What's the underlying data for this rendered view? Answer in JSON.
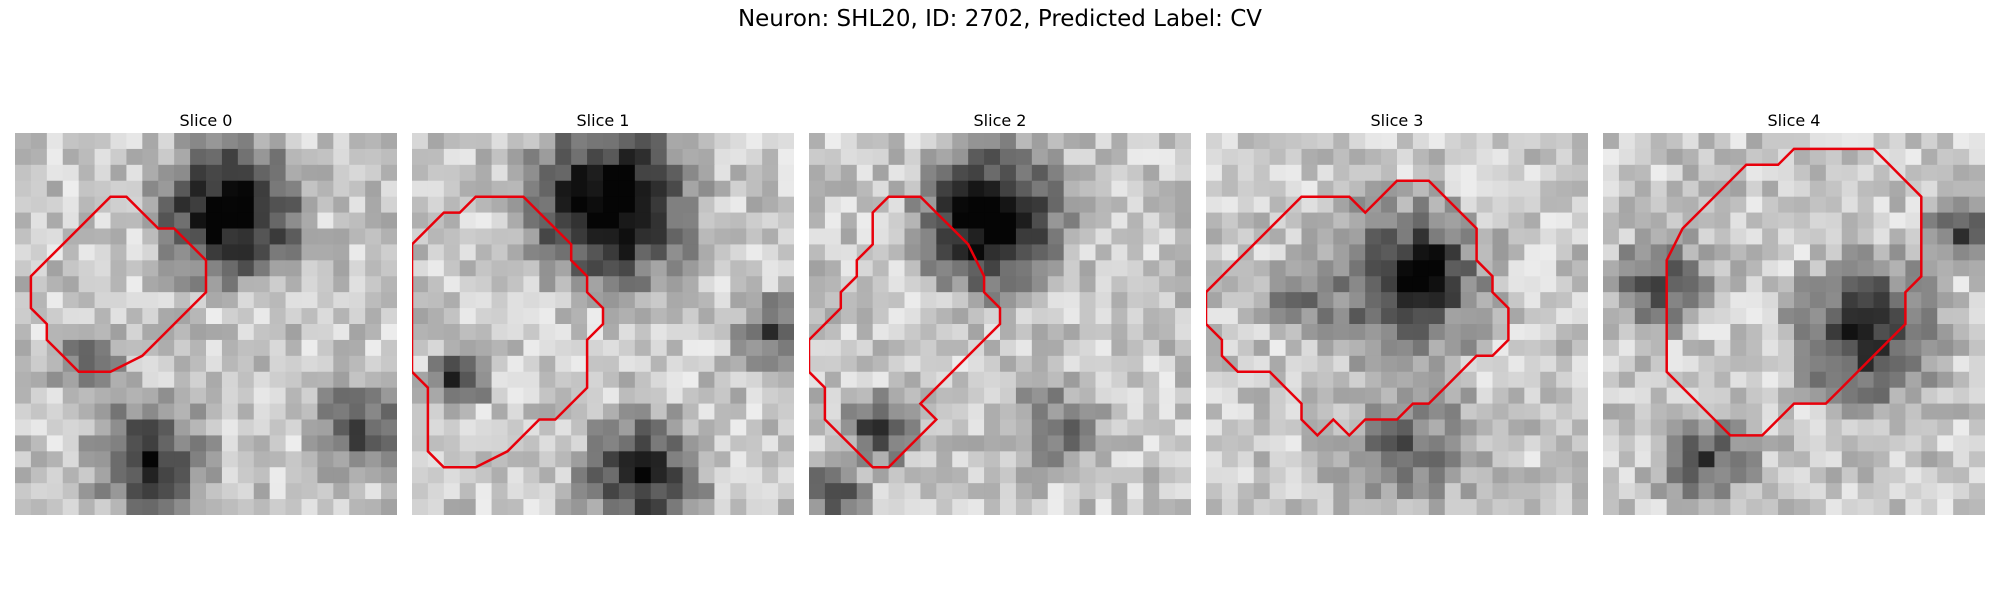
{
  "suptitle": "Neuron: SHL20, ID: 2702, Predicted Label: CV",
  "panels": [
    {
      "title": "Slice 0",
      "contour": [
        [
          11,
          7
        ],
        [
          12,
          8
        ],
        [
          12,
          10
        ],
        [
          11,
          11
        ],
        [
          10,
          12
        ],
        [
          9,
          13
        ],
        [
          8,
          14
        ],
        [
          6,
          15
        ],
        [
          4,
          15
        ],
        [
          3,
          14
        ],
        [
          2,
          13
        ],
        [
          2,
          12
        ],
        [
          1,
          11
        ],
        [
          1,
          9
        ],
        [
          2,
          8
        ],
        [
          3,
          7
        ],
        [
          4,
          6
        ],
        [
          5,
          5
        ],
        [
          6,
          4
        ],
        [
          7,
          4
        ],
        [
          8,
          5
        ],
        [
          9,
          6
        ],
        [
          10,
          6
        ]
      ]
    },
    {
      "title": "Slice 1",
      "contour": [
        [
          0,
          7
        ],
        [
          1,
          6
        ],
        [
          2,
          5
        ],
        [
          3,
          5
        ],
        [
          4,
          4
        ],
        [
          7,
          4
        ],
        [
          8,
          5
        ],
        [
          9,
          6
        ],
        [
          10,
          7
        ],
        [
          10,
          8
        ],
        [
          11,
          9
        ],
        [
          11,
          10
        ],
        [
          12,
          11
        ],
        [
          12,
          12
        ],
        [
          11,
          13
        ],
        [
          11,
          14
        ],
        [
          11,
          16
        ],
        [
          10,
          17
        ],
        [
          9,
          18
        ],
        [
          8,
          18
        ],
        [
          7,
          19
        ],
        [
          6,
          20
        ],
        [
          4,
          21
        ],
        [
          2,
          21
        ],
        [
          1,
          20
        ],
        [
          1,
          18
        ],
        [
          1,
          16
        ],
        [
          0,
          15
        ]
      ]
    },
    {
      "title": "Slice 2",
      "contour": [
        [
          4,
          5
        ],
        [
          5,
          4
        ],
        [
          7,
          4
        ],
        [
          8,
          5
        ],
        [
          9,
          6
        ],
        [
          10,
          7
        ],
        [
          11,
          9
        ],
        [
          11,
          10
        ],
        [
          12,
          11
        ],
        [
          12,
          12
        ],
        [
          11,
          13
        ],
        [
          10,
          14
        ],
        [
          9,
          15
        ],
        [
          8,
          16
        ],
        [
          7,
          17
        ],
        [
          8,
          18
        ],
        [
          7,
          19
        ],
        [
          6,
          20
        ],
        [
          5,
          21
        ],
        [
          4,
          21
        ],
        [
          3,
          20
        ],
        [
          2,
          19
        ],
        [
          1,
          18
        ],
        [
          1,
          16
        ],
        [
          0,
          15
        ],
        [
          0,
          13
        ],
        [
          1,
          12
        ],
        [
          2,
          11
        ],
        [
          2,
          10
        ],
        [
          3,
          9
        ],
        [
          3,
          8
        ],
        [
          4,
          7
        ]
      ]
    },
    {
      "title": "Slice 3",
      "contour": [
        [
          6,
          4
        ],
        [
          9,
          4
        ],
        [
          10,
          5
        ],
        [
          11,
          4
        ],
        [
          12,
          3
        ],
        [
          14,
          3
        ],
        [
          15,
          4
        ],
        [
          16,
          5
        ],
        [
          17,
          6
        ],
        [
          17,
          8
        ],
        [
          18,
          9
        ],
        [
          18,
          10
        ],
        [
          19,
          11
        ],
        [
          19,
          13
        ],
        [
          18,
          14
        ],
        [
          17,
          14
        ],
        [
          16,
          15
        ],
        [
          15,
          16
        ],
        [
          14,
          17
        ],
        [
          13,
          17
        ],
        [
          12,
          18
        ],
        [
          10,
          18
        ],
        [
          9,
          19
        ],
        [
          8,
          18
        ],
        [
          7,
          19
        ],
        [
          6,
          18
        ],
        [
          6,
          17
        ],
        [
          5,
          16
        ],
        [
          4,
          15
        ],
        [
          2,
          15
        ],
        [
          1,
          14
        ],
        [
          1,
          13
        ],
        [
          0,
          12
        ],
        [
          0,
          10
        ],
        [
          1,
          9
        ],
        [
          2,
          8
        ],
        [
          3,
          7
        ],
        [
          4,
          6
        ],
        [
          5,
          5
        ]
      ]
    },
    {
      "title": "Slice 4",
      "contour": [
        [
          14,
          1
        ],
        [
          17,
          1
        ],
        [
          18,
          2
        ],
        [
          19,
          3
        ],
        [
          20,
          4
        ],
        [
          20,
          6
        ],
        [
          20,
          9
        ],
        [
          19,
          10
        ],
        [
          19,
          12
        ],
        [
          18,
          13
        ],
        [
          17,
          14
        ],
        [
          16,
          15
        ],
        [
          15,
          16
        ],
        [
          14,
          17
        ],
        [
          12,
          17
        ],
        [
          11,
          18
        ],
        [
          10,
          19
        ],
        [
          8,
          19
        ],
        [
          7,
          18
        ],
        [
          6,
          17
        ],
        [
          5,
          16
        ],
        [
          4,
          15
        ],
        [
          4,
          13
        ],
        [
          4,
          10
        ],
        [
          4,
          8
        ],
        [
          5,
          6
        ],
        [
          6,
          5
        ],
        [
          7,
          4
        ],
        [
          8,
          3
        ],
        [
          9,
          2
        ],
        [
          11,
          2
        ],
        [
          12,
          1
        ]
      ]
    }
  ]
}
